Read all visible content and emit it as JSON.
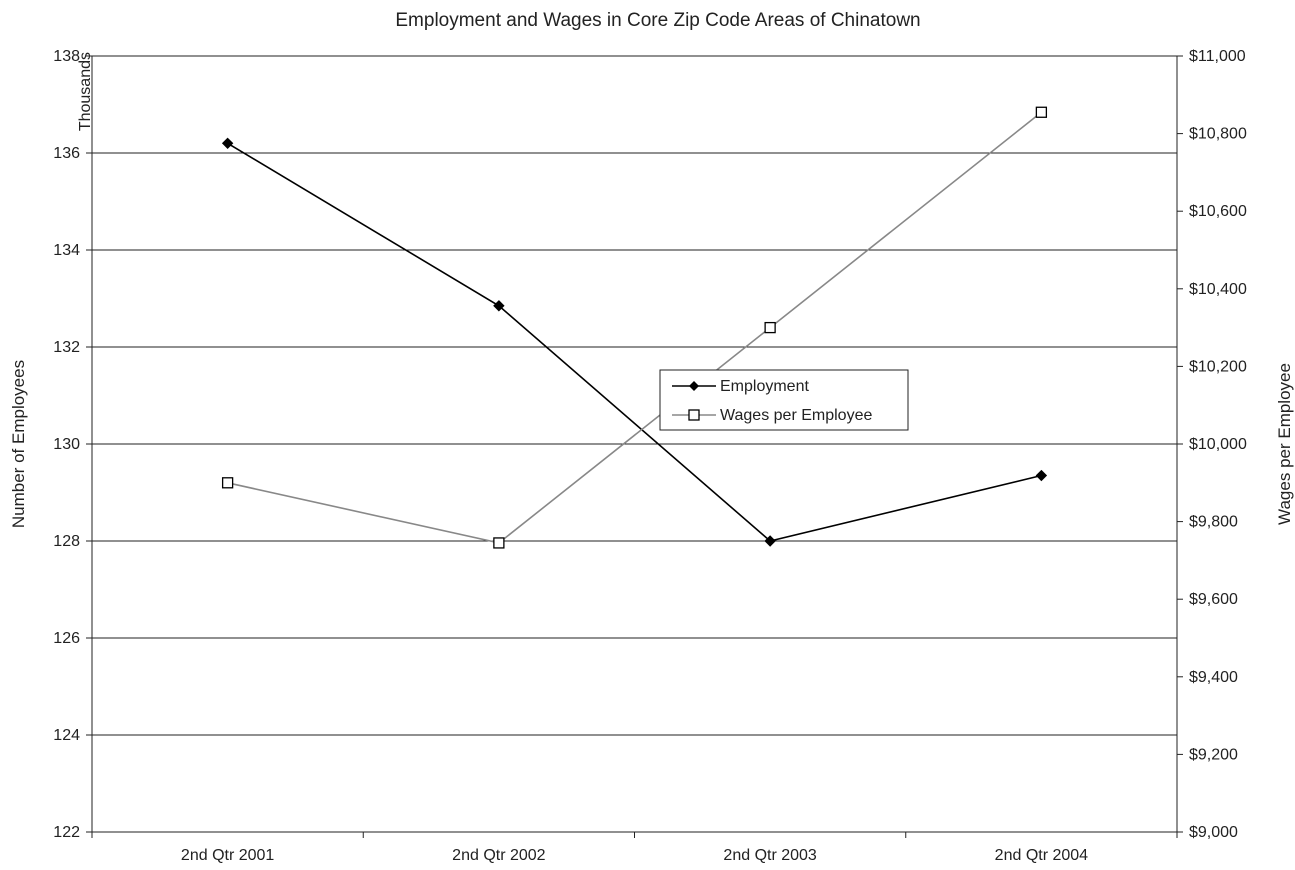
{
  "chart_data": {
    "type": "line",
    "title": "Employment and Wages in Core Zip Code Areas of Chinatown",
    "categories": [
      "2nd Qtr 2001",
      "2nd Qtr 2002",
      "2nd Qtr 2003",
      "2nd Qtr 2004"
    ],
    "y_left": {
      "label": "Number of Employees",
      "unit_label": "Thousands",
      "range": [
        122,
        138
      ],
      "ticks": [
        "122",
        "124",
        "126",
        "128",
        "130",
        "132",
        "134",
        "136",
        "138"
      ]
    },
    "y_right": {
      "label": "Wages per Employee",
      "range": [
        9000,
        11000
      ],
      "ticks": [
        "$9,000",
        "$9,200",
        "$9,400",
        "$9,600",
        "$9,800",
        "$10,000",
        "$10,200",
        "$10,400",
        "$10,600",
        "$10,800",
        "$11,000"
      ]
    },
    "series": [
      {
        "name": "Employment",
        "axis": "left",
        "values": [
          136.2,
          132.85,
          128.0,
          129.35
        ],
        "color": "#000000",
        "marker": "diamond"
      },
      {
        "name": "Wages per Employee",
        "axis": "right",
        "values": [
          9900,
          9745,
          10300,
          10855
        ],
        "color": "#888888",
        "marker": "square"
      }
    ],
    "grid": true,
    "legend_position": "center-right"
  }
}
